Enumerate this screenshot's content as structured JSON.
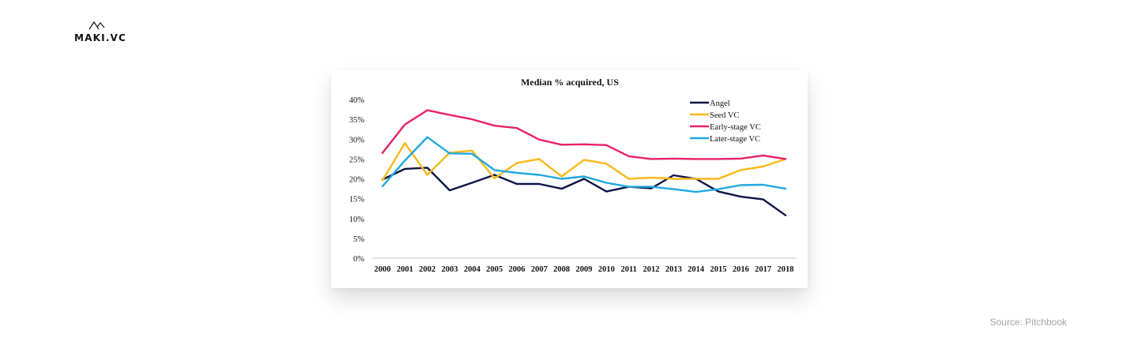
{
  "brand": {
    "name": "MAKI.VC",
    "logo_icon": "mountain-icon"
  },
  "source": "Source: Pitchbook",
  "chart_data": {
    "type": "line",
    "title": "Median % acquired, US",
    "xlabel": "",
    "ylabel": "",
    "ylim": [
      0,
      40
    ],
    "y_ticks": [
      "0%",
      "5%",
      "10%",
      "15%",
      "20%",
      "25%",
      "30%",
      "35%",
      "40%"
    ],
    "y_tick_values": [
      0,
      5,
      10,
      15,
      20,
      25,
      30,
      35,
      40
    ],
    "categories": [
      "2000",
      "2001",
      "2002",
      "2003",
      "2004",
      "2005",
      "2006",
      "2007",
      "2008",
      "2009",
      "2010",
      "2011",
      "2012",
      "2013",
      "2014",
      "2015",
      "2016",
      "2017",
      "2018"
    ],
    "legend_position": "top-right",
    "grid": false,
    "series": [
      {
        "name": "Angel",
        "color": "#0d1446",
        "values": [
          19.8,
          22.5,
          22.8,
          17.1,
          19.0,
          21.0,
          18.7,
          18.7,
          17.5,
          20.0,
          16.8,
          18.0,
          17.6,
          20.9,
          20.0,
          16.8,
          15.5,
          14.8,
          10.8
        ]
      },
      {
        "name": "Seed VC",
        "color": "#f7b91a",
        "values": [
          19.6,
          29.0,
          21.0,
          26.6,
          27.1,
          20.1,
          24.0,
          25.0,
          20.6,
          24.8,
          23.8,
          20.0,
          20.3,
          20.0,
          20.0,
          20.0,
          22.2,
          23.1,
          25.0
        ]
      },
      {
        "name": "Early-stage VC",
        "color": "#e8206b",
        "values": [
          26.5,
          33.7,
          37.3,
          36.1,
          35.0,
          33.4,
          32.8,
          29.9,
          28.6,
          28.7,
          28.5,
          25.7,
          25.0,
          25.1,
          25.0,
          25.0,
          25.1,
          25.9,
          25.0
        ]
      },
      {
        "name": "Later-stage VC",
        "color": "#1ea8df",
        "values": [
          18.1,
          24.6,
          30.5,
          26.4,
          26.3,
          22.2,
          21.5,
          21.0,
          20.0,
          20.6,
          19.0,
          18.0,
          18.0,
          17.4,
          16.7,
          17.4,
          18.4,
          18.5,
          17.5
        ]
      }
    ]
  }
}
